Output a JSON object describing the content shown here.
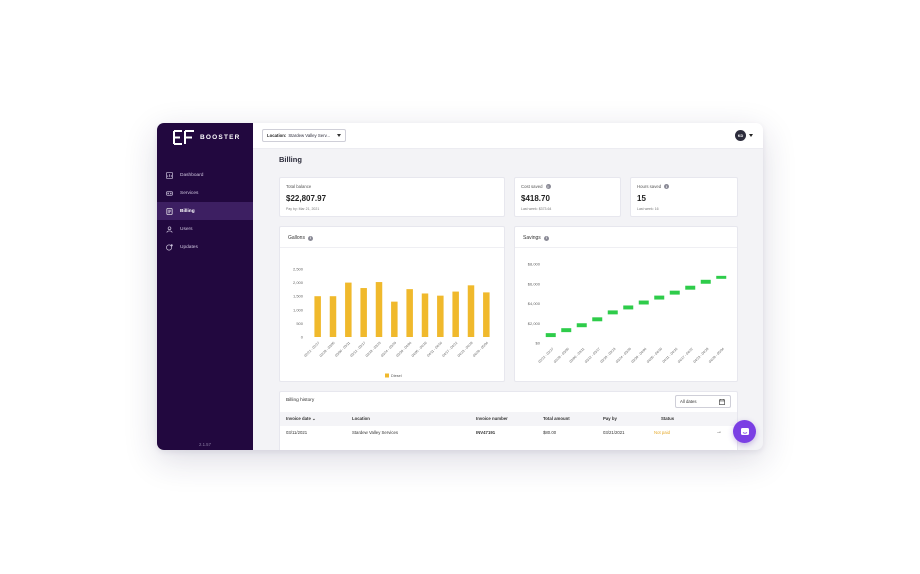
{
  "brand": {
    "name": "BOOSTER"
  },
  "sidebar": {
    "items": [
      {
        "label": "Dashboard",
        "icon": "dashboard-icon",
        "active": false
      },
      {
        "label": "Services",
        "icon": "services-icon",
        "active": false
      },
      {
        "label": "Billing",
        "icon": "billing-icon",
        "active": true
      },
      {
        "label": "Users",
        "icon": "users-icon",
        "active": false
      },
      {
        "label": "Updates",
        "icon": "updates-icon",
        "active": false
      }
    ],
    "version": "2.1.57"
  },
  "topbar": {
    "location_label": "Location:",
    "location_value": "Stardew Valley Serv...",
    "avatar_initials": "KD"
  },
  "page": {
    "title": "Billing"
  },
  "stats": [
    {
      "label": "Total balance",
      "value": "$22,807.97",
      "sub": "Pay by: Mar 21, 2021",
      "info": false
    },
    {
      "label": "Cost saved",
      "value": "$418.70",
      "sub": "Last week:   $373.64",
      "info": true
    },
    {
      "label": "Hours saved",
      "value": "15",
      "sub": "Last week:   16",
      "info": true
    }
  ],
  "gallons_chart": {
    "title": "Gallons",
    "legend": "Diesel",
    "color": "#f0b92c"
  },
  "savings_chart": {
    "title": "Savings",
    "color": "#2ecc4a"
  },
  "chart_data": [
    {
      "type": "bar",
      "title": "Gallons",
      "categories": [
        "02/22 - 02/27",
        "02/28 - 03/05",
        "03/06 - 03/11",
        "03/12 - 03/17",
        "03/18 - 03/23",
        "03/24 - 03/29",
        "03/30 - 04/04",
        "04/05 - 04/10",
        "04/11 - 04/16",
        "04/17 - 04/22",
        "04/23 - 04/28",
        "04/29 - 05/04"
      ],
      "series": [
        {
          "name": "Diesel",
          "values": [
            1500,
            1500,
            2000,
            1800,
            2020,
            1300,
            1760,
            1600,
            1520,
            1670,
            1900,
            1640
          ]
        }
      ],
      "yticks": [
        "0",
        "500",
        "1,000",
        "1,500",
        "2,000",
        "2,500"
      ],
      "ylim": [
        0,
        2500
      ]
    },
    {
      "type": "bar",
      "title": "Savings",
      "categories": [
        "02/22 - 02/27",
        "02/28 - 03/05",
        "03/06 - 03/11",
        "03/12 - 03/17",
        "03/18 - 03/23",
        "03/24 - 03/29",
        "03/30 - 04/04",
        "04/05 - 04/10",
        "04/11 - 04/16",
        "04/17 - 04/22",
        "04/23 - 04/28",
        "04/29 - 05/04"
      ],
      "series": [
        {
          "ranges": [
            [
              600,
              1000
            ],
            [
              1100,
              1500
            ],
            [
              1600,
              2000
            ],
            [
              2200,
              2600
            ],
            [
              2900,
              3300
            ],
            [
              3400,
              3800
            ],
            [
              3900,
              4300
            ],
            [
              4400,
              4800
            ],
            [
              4900,
              5300
            ],
            [
              5400,
              5800
            ],
            [
              6000,
              6400
            ],
            [
              6500,
              6800
            ]
          ]
        }
      ],
      "yticks": [
        "$0",
        "$2,000",
        "$4,000",
        "$6,000",
        "$8,000"
      ],
      "ylim": [
        0,
        8000
      ]
    }
  ],
  "billing_history": {
    "title": "Billing history",
    "filter": "All dates",
    "columns": [
      "Invoice date",
      "Location",
      "Invoice number",
      "Total amount",
      "Pay by",
      "Status"
    ],
    "rows": [
      {
        "invoice_date": "03/11/2021",
        "location": "Stardew Valley Services",
        "invoice_number": "INV47191",
        "total_amount": "$80.00",
        "pay_by": "03/21/2021",
        "status": "Not paid"
      }
    ]
  }
}
